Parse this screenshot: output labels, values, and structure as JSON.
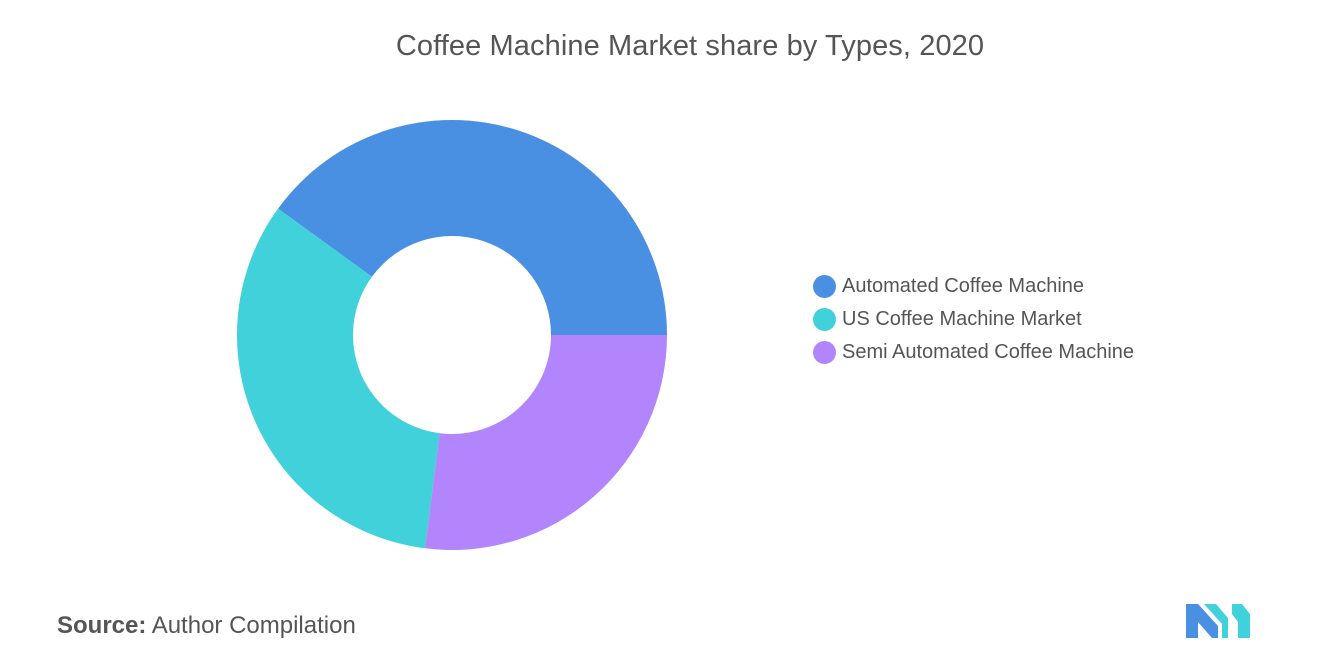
{
  "chart_data": {
    "type": "pie",
    "title": "Coffee Machine Market share by Types, 2020",
    "donut": true,
    "legend_position": "right",
    "series": [
      {
        "name": "Automated Coffee Machine",
        "value": 40,
        "color": "#4A90E2"
      },
      {
        "name": "US Coffee Machine Market",
        "value": 33,
        "color": "#40D1DB"
      },
      {
        "name": "Semi Automated Coffee Machine",
        "value": 27,
        "color": "#B285FD"
      }
    ]
  },
  "source": {
    "label": "Source:",
    "text": "Author Compilation"
  },
  "logo": {
    "icon": "mordor-logo-icon",
    "colors": [
      "#4A90E2",
      "#40D1DB"
    ]
  }
}
